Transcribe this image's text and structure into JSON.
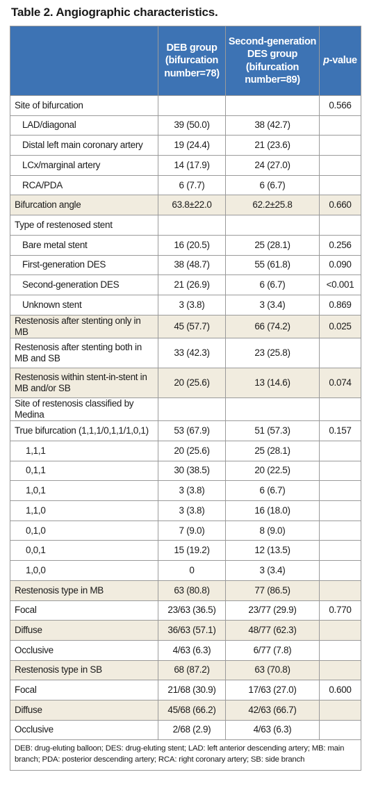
{
  "title": "Table 2. Angiographic characteristics.",
  "header": {
    "col1": "",
    "col2": "DEB group (bifurcation number=78)",
    "col3": "Second-generation DES group (bifurcation number=89)",
    "col4_italic": "p",
    "col4_rest": "-value"
  },
  "rows": [
    {
      "label": "Site of bifurcation",
      "deb": "",
      "des": "",
      "p": "0.566",
      "indent": 0,
      "shade": false,
      "tall": false
    },
    {
      "label": "LAD/diagonal",
      "deb": "39 (50.0)",
      "des": "38 (42.7)",
      "p": "",
      "indent": 1,
      "shade": false,
      "tall": false
    },
    {
      "label": "Distal left main coronary artery",
      "deb": "19 (24.4)",
      "des": "21 (23.6)",
      "p": "",
      "indent": 1,
      "shade": false,
      "tall": false
    },
    {
      "label": "LCx/marginal artery",
      "deb": "14 (17.9)",
      "des": "24 (27.0)",
      "p": "",
      "indent": 1,
      "shade": false,
      "tall": false
    },
    {
      "label": "RCA/PDA",
      "deb": "6 (7.7)",
      "des": "6 (6.7)",
      "p": "",
      "indent": 1,
      "shade": false,
      "tall": false
    },
    {
      "label": "Bifurcation angle",
      "deb": "63.8±22.0",
      "des": "62.2±25.8",
      "p": "0.660",
      "indent": 0,
      "shade": true,
      "tall": false
    },
    {
      "label": "Type of restenosed stent",
      "deb": "",
      "des": "",
      "p": "",
      "indent": 0,
      "shade": false,
      "tall": false
    },
    {
      "label": "Bare metal stent",
      "deb": "16 (20.5)",
      "des": "25 (28.1)",
      "p": "0.256",
      "indent": 1,
      "shade": false,
      "tall": false
    },
    {
      "label": "First-generation DES",
      "deb": "38 (48.7)",
      "des": "55 (61.8)",
      "p": "0.090",
      "indent": 1,
      "shade": false,
      "tall": false
    },
    {
      "label": "Second-generation DES",
      "deb": "21 (26.9)",
      "des": "6 (6.7)",
      "p": "<0.001",
      "indent": 1,
      "shade": false,
      "tall": false
    },
    {
      "label": "Unknown stent",
      "deb": "3 (3.8)",
      "des": "3 (3.4)",
      "p": "0.869",
      "indent": 1,
      "shade": false,
      "tall": false
    },
    {
      "label": "Restenosis after stenting only in MB",
      "deb": "45 (57.7)",
      "des": "66 (74.2)",
      "p": "0.025",
      "indent": 0,
      "shade": true,
      "tall": false
    },
    {
      "label": "Restenosis after stenting both in MB and SB",
      "deb": "33 (42.3)",
      "des": "23 (25.8)",
      "p": "",
      "indent": 0,
      "shade": false,
      "tall": true
    },
    {
      "label": "Restenosis within stent-in-stent in MB and/or SB",
      "deb": "20 (25.6)",
      "des": "13 (14.6)",
      "p": "0.074",
      "indent": 0,
      "shade": true,
      "tall": true
    },
    {
      "label": "Site of restenosis classified by Medina",
      "deb": "",
      "des": "",
      "p": "",
      "indent": 0,
      "shade": false,
      "tall": false
    },
    {
      "label": "True bifurcation (1,1,1/0,1,1/1,0,1)",
      "deb": "53 (67.9)",
      "des": "51 (57.3)",
      "p": "0.157",
      "indent": 0,
      "shade": false,
      "tall": false
    },
    {
      "label": "1,1,1",
      "deb": "20 (25.6)",
      "des": "25 (28.1)",
      "p": "",
      "indent": 2,
      "shade": false,
      "tall": false
    },
    {
      "label": "0,1,1",
      "deb": "30 (38.5)",
      "des": "20 (22.5)",
      "p": "",
      "indent": 2,
      "shade": false,
      "tall": false
    },
    {
      "label": "1,0,1",
      "deb": "3 (3.8)",
      "des": "6 (6.7)",
      "p": "",
      "indent": 2,
      "shade": false,
      "tall": false
    },
    {
      "label": "1,1,0",
      "deb": "3 (3.8)",
      "des": "16 (18.0)",
      "p": "",
      "indent": 2,
      "shade": false,
      "tall": false
    },
    {
      "label": "0,1,0",
      "deb": "7 (9.0)",
      "des": "8 (9.0)",
      "p": "",
      "indent": 2,
      "shade": false,
      "tall": false
    },
    {
      "label": "0,0,1",
      "deb": "15 (19.2)",
      "des": "12 (13.5)",
      "p": "",
      "indent": 2,
      "shade": false,
      "tall": false
    },
    {
      "label": "1,0,0",
      "deb": "0",
      "des": "3 (3.4)",
      "p": "",
      "indent": 2,
      "shade": false,
      "tall": false
    },
    {
      "label": "Restenosis type in MB",
      "deb": "63 (80.8)",
      "des": "77 (86.5)",
      "p": "",
      "indent": 0,
      "shade": true,
      "tall": false
    },
    {
      "label": "Focal",
      "deb": "23/63 (36.5)",
      "des": "23/77 (29.9)",
      "p": "0.770",
      "indent": 0,
      "shade": false,
      "tall": false
    },
    {
      "label": "Diffuse",
      "deb": "36/63 (57.1)",
      "des": "48/77 (62.3)",
      "p": "",
      "indent": 0,
      "shade": true,
      "tall": false
    },
    {
      "label": "Occlusive",
      "deb": "4/63 (6.3)",
      "des": "6/77 (7.8)",
      "p": "",
      "indent": 0,
      "shade": false,
      "tall": false
    },
    {
      "label": "Restenosis type in SB",
      "deb": "68 (87.2)",
      "des": "63 (70.8)",
      "p": "",
      "indent": 0,
      "shade": true,
      "tall": false
    },
    {
      "label": "Focal",
      "deb": "21/68 (30.9)",
      "des": "17/63 (27.0)",
      "p": "0.600",
      "indent": 0,
      "shade": false,
      "tall": false
    },
    {
      "label": "Diffuse",
      "deb": "45/68 (66.2)",
      "des": "42/63 (66.7)",
      "p": "",
      "indent": 0,
      "shade": true,
      "tall": false
    },
    {
      "label": "Occlusive",
      "deb": "2/68 (2.9)",
      "des": "4/63 (6.3)",
      "p": "",
      "indent": 0,
      "shade": false,
      "tall": false
    }
  ],
  "footnote": "DEB: drug-eluting balloon; DES: drug-eluting stent; LAD: left anterior descending artery; MB: main branch; PDA: posterior descending artery; RCA: right coronary artery; SB: side branch",
  "colors": {
    "header_bg": "#3d73b4",
    "header_text": "#ffffff",
    "shade_row": "#f1ecdf",
    "border": "#9a9a9a"
  }
}
